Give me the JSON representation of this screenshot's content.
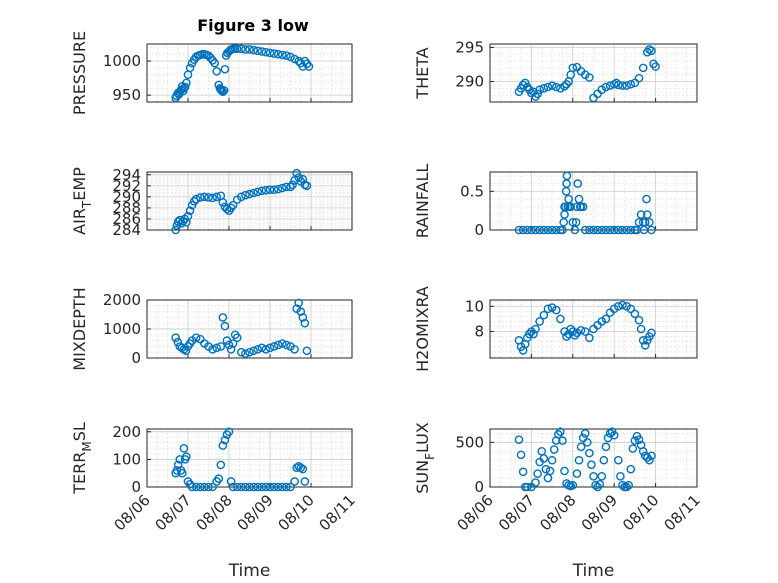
{
  "figure_title": "Figure 3 low",
  "colors": {
    "marker": "#0072BD",
    "axis": "#262626"
  },
  "chart_data": [
    {
      "type": "scatter",
      "panel": "PRESSURE",
      "ylabel": "PRESSURE",
      "title": "Figure 3 low",
      "xlabel": "",
      "xlim": [
        "08/06",
        "08/11"
      ],
      "ylim": [
        940,
        1025
      ],
      "yticks": [
        "950",
        "1000"
      ],
      "yticks_values": [
        950,
        1000
      ],
      "xticks": [],
      "grid": true,
      "x": [
        0.7,
        0.72,
        0.75,
        0.78,
        0.8,
        0.83,
        0.86,
        0.88,
        0.9,
        0.93,
        0.96,
        1.0,
        1.05,
        1.1,
        1.15,
        1.2,
        1.25,
        1.3,
        1.35,
        1.4,
        1.45,
        1.5,
        1.55,
        1.6,
        1.65,
        1.7,
        1.75,
        1.78,
        1.8,
        1.82,
        1.85,
        1.88,
        1.9,
        1.93,
        1.96,
        2.0,
        2.03,
        2.06,
        2.1,
        2.15,
        2.2,
        2.3,
        2.4,
        2.5,
        2.6,
        2.7,
        2.8,
        2.9,
        3.0,
        3.1,
        3.2,
        3.3,
        3.4,
        3.5,
        3.6,
        3.7,
        3.75,
        3.8,
        3.85,
        3.9,
        3.95
      ],
      "y": [
        946,
        949,
        953,
        951,
        955,
        958,
        963,
        956,
        960,
        962,
        968,
        980,
        990,
        997,
        1002,
        1006,
        1008,
        1009,
        1010,
        1010,
        1009,
        1008,
        1005,
        1001,
        997,
        985,
        965,
        960,
        958,
        957,
        955,
        957,
        988,
        1008,
        1012,
        1014,
        1016,
        1017,
        1018,
        1018,
        1018,
        1018,
        1017,
        1017,
        1016,
        1015,
        1014,
        1013,
        1012,
        1011,
        1010,
        1009,
        1008,
        1006,
        1003,
        1000,
        997,
        992,
        1000,
        996,
        992
      ]
    },
    {
      "type": "scatter",
      "panel": "THETA",
      "ylabel": "THETA",
      "xlabel": "",
      "xlim": [
        "08/06",
        "08/11"
      ],
      "ylim": [
        287,
        295.5
      ],
      "yticks": [
        "290",
        "295"
      ],
      "yticks_values": [
        290,
        295
      ],
      "xticks": [],
      "grid": true,
      "x": [
        0.7,
        0.75,
        0.8,
        0.85,
        0.9,
        0.95,
        1.0,
        1.05,
        1.1,
        1.15,
        1.2,
        1.3,
        1.4,
        1.5,
        1.6,
        1.7,
        1.8,
        1.85,
        1.9,
        1.95,
        2.0,
        2.1,
        2.2,
        2.3,
        2.4,
        2.5,
        2.6,
        2.7,
        2.8,
        2.9,
        3.0,
        3.05,
        3.1,
        3.2,
        3.3,
        3.4,
        3.5,
        3.6,
        3.7,
        3.8,
        3.85,
        3.9,
        3.95,
        4.0
      ],
      "y": [
        288.5,
        289,
        289.5,
        289.8,
        289.2,
        288.8,
        288.3,
        288.5,
        287.8,
        288.2,
        288.8,
        289,
        289.2,
        289.4,
        289.2,
        289,
        289.3,
        289.6,
        290,
        291,
        292,
        292.1,
        291.5,
        291,
        290.6,
        287.6,
        288.2,
        288.8,
        289.2,
        289.4,
        289.6,
        289.8,
        289.5,
        289.4,
        289.4,
        289.6,
        289.8,
        290.5,
        292,
        294.3,
        294.7,
        294.5,
        292.6,
        292.2
      ]
    },
    {
      "type": "scatter",
      "panel": "AIR_TEMP",
      "ylabel": "AIR_TEMP",
      "xlabel": "",
      "xlim": [
        "08/06",
        "08/11"
      ],
      "ylim": [
        284,
        294.5
      ],
      "yticks": [
        "284",
        "286",
        "288",
        "290",
        "292",
        "294"
      ],
      "yticks_values": [
        284,
        286,
        288,
        290,
        292,
        294
      ],
      "xticks": [],
      "grid": true,
      "x": [
        0.7,
        0.73,
        0.76,
        0.8,
        0.84,
        0.88,
        0.92,
        0.96,
        1.0,
        1.05,
        1.1,
        1.15,
        1.2,
        1.3,
        1.4,
        1.5,
        1.6,
        1.7,
        1.8,
        1.85,
        1.9,
        1.95,
        2.0,
        2.05,
        2.1,
        2.2,
        2.3,
        2.4,
        2.5,
        2.6,
        2.7,
        2.8,
        2.9,
        3.0,
        3.1,
        3.2,
        3.3,
        3.4,
        3.5,
        3.55,
        3.6,
        3.65,
        3.7,
        3.75,
        3.8,
        3.85,
        3.9
      ],
      "y": [
        284,
        284.8,
        285.5,
        285.8,
        285.2,
        285.6,
        286,
        285.4,
        286.5,
        287.5,
        288.5,
        289.2,
        289.6,
        289.9,
        290,
        289.9,
        289.8,
        290,
        290.2,
        289,
        288.2,
        287.8,
        287.5,
        288,
        288.5,
        289.5,
        290,
        290.3,
        290.5,
        290.7,
        290.9,
        291.1,
        291.2,
        291.3,
        291.3,
        291.4,
        291.6,
        291.8,
        291.8,
        292.2,
        293,
        294.3,
        293.5,
        292.8,
        293.2,
        292.2,
        292
      ]
    },
    {
      "type": "scatter",
      "panel": "RAINFALL",
      "ylabel": "RAINFALL",
      "xlabel": "",
      "xlim": [
        "08/06",
        "08/11"
      ],
      "ylim": [
        0,
        0.75
      ],
      "yticks": [
        "0",
        "0.5"
      ],
      "yticks_values": [
        0,
        0.5
      ],
      "xticks": [],
      "grid": true,
      "x": [
        0.7,
        0.8,
        0.9,
        1.0,
        1.1,
        1.2,
        1.3,
        1.4,
        1.5,
        1.6,
        1.7,
        1.75,
        1.78,
        1.8,
        1.8,
        1.82,
        1.84,
        1.85,
        1.86,
        1.88,
        1.9,
        1.92,
        1.95,
        2.0,
        2.05,
        2.08,
        2.1,
        2.12,
        2.15,
        2.18,
        2.2,
        2.25,
        2.3,
        2.4,
        2.5,
        2.6,
        2.7,
        2.8,
        2.9,
        3.0,
        3.1,
        3.2,
        3.3,
        3.4,
        3.5,
        3.55,
        3.6,
        3.65,
        3.7,
        3.72,
        3.75,
        3.78,
        3.8,
        3.85,
        3.9
      ],
      "y": [
        0,
        0,
        0,
        0,
        0,
        0,
        0,
        0,
        0,
        0,
        0,
        0,
        0.1,
        0.3,
        0.2,
        0.3,
        0.5,
        0.6,
        0.7,
        0.3,
        0.4,
        0.3,
        0.3,
        0.1,
        0,
        0.1,
        0.3,
        0.6,
        0.4,
        0.3,
        0.3,
        0.3,
        0,
        0,
        0,
        0,
        0,
        0,
        0,
        0,
        0,
        0,
        0,
        0,
        0,
        0,
        0.1,
        0.2,
        0.1,
        0,
        0.1,
        0.4,
        0.2,
        0.1,
        0
      ]
    },
    {
      "type": "scatter",
      "panel": "MIXDEPTH",
      "ylabel": "MIXDEPTH",
      "xlabel": "",
      "xlim": [
        "08/06",
        "08/11"
      ],
      "ylim": [
        0,
        2000
      ],
      "yticks": [
        "0",
        "1000",
        "2000"
      ],
      "yticks_values": [
        0,
        1000,
        2000
      ],
      "xticks": [],
      "grid": true,
      "x": [
        0.7,
        0.75,
        0.8,
        0.85,
        0.9,
        0.95,
        1.0,
        1.05,
        1.1,
        1.2,
        1.3,
        1.4,
        1.5,
        1.6,
        1.7,
        1.8,
        1.85,
        1.9,
        1.95,
        2.0,
        2.05,
        2.1,
        2.15,
        2.2,
        2.3,
        2.4,
        2.5,
        2.6,
        2.7,
        2.8,
        2.9,
        3.0,
        3.1,
        3.2,
        3.3,
        3.4,
        3.5,
        3.6,
        3.65,
        3.7,
        3.75,
        3.8,
        3.85,
        3.9
      ],
      "y": [
        700,
        550,
        400,
        350,
        300,
        250,
        400,
        500,
        600,
        700,
        650,
        500,
        400,
        300,
        350,
        400,
        1400,
        1100,
        600,
        450,
        300,
        500,
        800,
        700,
        200,
        150,
        200,
        250,
        300,
        350,
        300,
        350,
        400,
        450,
        500,
        450,
        400,
        300,
        1700,
        1900,
        1600,
        1400,
        1200,
        250
      ]
    },
    {
      "type": "scatter",
      "panel": "H2OMIXRA",
      "ylabel": "H2OMIXRA",
      "xlabel": "",
      "xlim": [
        "08/06",
        "08/11"
      ],
      "ylim": [
        5.9,
        10.5
      ],
      "yticks": [
        "8",
        "10"
      ],
      "yticks_values": [
        8,
        10
      ],
      "xticks": [],
      "grid": true,
      "x": [
        0.7,
        0.75,
        0.8,
        0.85,
        0.9,
        0.95,
        1.0,
        1.05,
        1.1,
        1.2,
        1.3,
        1.4,
        1.5,
        1.6,
        1.7,
        1.8,
        1.85,
        1.9,
        1.95,
        2.0,
        2.05,
        2.1,
        2.2,
        2.3,
        2.4,
        2.5,
        2.6,
        2.7,
        2.8,
        2.9,
        3.0,
        3.1,
        3.2,
        3.3,
        3.4,
        3.5,
        3.6,
        3.65,
        3.7,
        3.75,
        3.8,
        3.85,
        3.9
      ],
      "y": [
        7.3,
        6.8,
        6.5,
        7.0,
        7.5,
        7.8,
        8.0,
        7.8,
        8.2,
        8.8,
        9.3,
        9.8,
        9.9,
        9.7,
        9.0,
        8.0,
        7.6,
        7.8,
        8.2,
        8.0,
        7.7,
        7.9,
        8.1,
        8.0,
        7.5,
        8.2,
        8.5,
        8.8,
        9.0,
        9.5,
        9.8,
        10.0,
        10.1,
        10.0,
        9.8,
        9.4,
        8.9,
        8.2,
        7.3,
        6.9,
        7.3,
        7.6,
        7.9
      ]
    },
    {
      "type": "scatter",
      "panel": "TERR_MSL",
      "ylabel": "TERR_MSL",
      "xlabel": "Time",
      "xlim": [
        "08/06",
        "08/11"
      ],
      "ylim": [
        0,
        210
      ],
      "yticks": [
        "0",
        "100",
        "200"
      ],
      "yticks_values": [
        0,
        100,
        200
      ],
      "xticks": [
        "08/06",
        "08/07",
        "08/08",
        "08/09",
        "08/10",
        "08/11"
      ],
      "grid": true,
      "x": [
        0.7,
        0.73,
        0.76,
        0.8,
        0.83,
        0.86,
        0.9,
        0.93,
        0.96,
        1.0,
        1.05,
        1.1,
        1.2,
        1.3,
        1.4,
        1.5,
        1.6,
        1.7,
        1.75,
        1.8,
        1.85,
        1.9,
        1.95,
        2.0,
        2.05,
        2.1,
        2.2,
        2.3,
        2.4,
        2.5,
        2.6,
        2.7,
        2.8,
        2.9,
        3.0,
        3.1,
        3.2,
        3.3,
        3.4,
        3.5,
        3.6,
        3.65,
        3.7,
        3.75,
        3.8,
        3.85
      ],
      "y": [
        50,
        60,
        80,
        100,
        60,
        50,
        140,
        100,
        110,
        20,
        10,
        0,
        0,
        0,
        0,
        0,
        0,
        20,
        30,
        80,
        150,
        170,
        190,
        200,
        20,
        0,
        0,
        0,
        0,
        0,
        0,
        0,
        0,
        0,
        0,
        0,
        0,
        0,
        0,
        0,
        20,
        70,
        75,
        70,
        65,
        20
      ]
    },
    {
      "type": "scatter",
      "panel": "SUN_FLUX",
      "ylabel": "SUN_FLUX",
      "xlabel": "Time",
      "xlim": [
        "08/06",
        "08/11"
      ],
      "ylim": [
        0,
        650
      ],
      "yticks": [
        "0",
        "500"
      ],
      "yticks_values": [
        0,
        500
      ],
      "xticks": [
        "08/06",
        "08/07",
        "08/08",
        "08/09",
        "08/10",
        "08/11"
      ],
      "grid": true,
      "x": [
        0.7,
        0.75,
        0.8,
        0.85,
        0.9,
        1.0,
        1.1,
        1.15,
        1.2,
        1.25,
        1.3,
        1.35,
        1.4,
        1.45,
        1.5,
        1.55,
        1.6,
        1.65,
        1.7,
        1.75,
        1.8,
        1.85,
        1.9,
        1.95,
        2.0,
        2.1,
        2.15,
        2.2,
        2.25,
        2.3,
        2.35,
        2.4,
        2.45,
        2.5,
        2.55,
        2.6,
        2.65,
        2.7,
        2.75,
        2.8,
        2.85,
        2.9,
        2.95,
        3.0,
        3.1,
        3.15,
        3.2,
        3.25,
        3.3,
        3.35,
        3.4,
        3.45,
        3.5,
        3.55,
        3.6,
        3.65,
        3.7,
        3.75,
        3.8,
        3.85,
        3.9
      ],
      "y": [
        530,
        360,
        170,
        0,
        0,
        0,
        50,
        150,
        280,
        400,
        320,
        200,
        100,
        180,
        300,
        420,
        520,
        590,
        620,
        520,
        180,
        40,
        20,
        10,
        20,
        150,
        300,
        450,
        550,
        600,
        500,
        380,
        250,
        120,
        20,
        0,
        30,
        120,
        300,
        450,
        550,
        600,
        620,
        580,
        300,
        120,
        20,
        0,
        0,
        20,
        200,
        430,
        520,
        570,
        530,
        470,
        400,
        350,
        330,
        300,
        350
      ]
    }
  ]
}
